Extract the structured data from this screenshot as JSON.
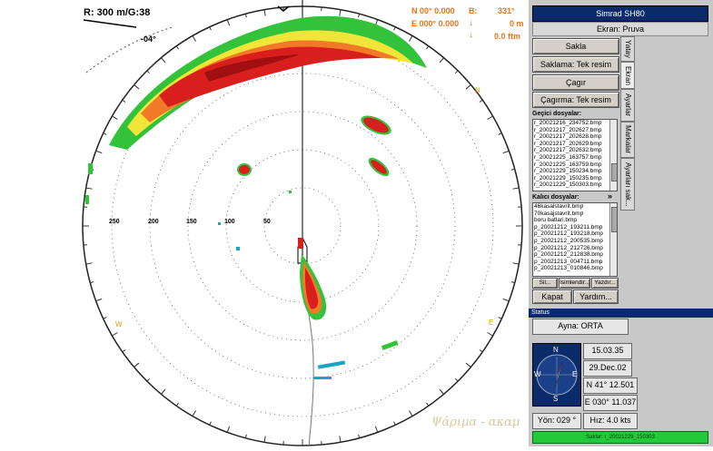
{
  "readout": {
    "range_gain": "R:  300 m/G:38",
    "tilt": "-04°",
    "lat": "N  00° 0.000",
    "lon": "E 000° 0.000",
    "bearing_label": "B:",
    "bearing_value": "331°",
    "depth_value": "0 m",
    "depth_ftm": "0.0 ftm",
    "range_labels": [
      "250",
      "200",
      "150",
      "100",
      "50"
    ],
    "watermark": "Ψάριμα - ακαμ"
  },
  "panel": {
    "title": "Simrad SH80",
    "subtitle": "Ekran: Pruva",
    "buttons": [
      "Sakla",
      "Saklama: Tek resim",
      "Çagır",
      "Çagırma: Tek resim"
    ],
    "temp_label": "Geçici dosyalar:",
    "temp_files": [
      "r_20021216_234752.bmp",
      "r_20021217_202627.bmp",
      "r_20021217_202628.bmp",
      "r_20021217_202629.bmp",
      "r_20021217_202632.bmp",
      "r_20021225_163757.bmp",
      "r_20021225_163759.bmp",
      "r_20021229_150234.bmp",
      "r_20021229_150235.bmp",
      "r_20021229_150303.bmp"
    ],
    "perm_label": "Kalıcı dosyalar:",
    "perm_files": [
      "46kasalstavrit.bmp",
      "70kasajstavrit.bmp",
      "boru batlari.bmp",
      "p_20021212_193211.bmp",
      "p_20021212_193218.bmp",
      "p_20021212_200535.bmp",
      "p_20021212_212726.bmp",
      "p_20021212_212838.bmp",
      "p_20021213_004711.bmp",
      "p_20021213_010846.bmp"
    ],
    "small_buttons": [
      "Sil...",
      "İsimlendir...",
      "Yazdır..."
    ],
    "kapat": "Kapat",
    "yardim": "Yardım...",
    "tabs": [
      "Yatay",
      "Ekran",
      "Ayarlar",
      "Markalar",
      "Ayarları sak..."
    ],
    "status_header": "Status",
    "ayna": "Ayna: ORTA",
    "time": "15.03.35",
    "date": "29.Dec.02",
    "lat": "N  41° 12.501",
    "lon": "E 030° 11.037",
    "heading": "Yön: 029 °",
    "speed": "Hız: 4.0 kts",
    "status_text": "Saklar: r_20021229_150303",
    "compass": {
      "n": "N",
      "s": "S",
      "e": "E",
      "w": "W"
    }
  }
}
